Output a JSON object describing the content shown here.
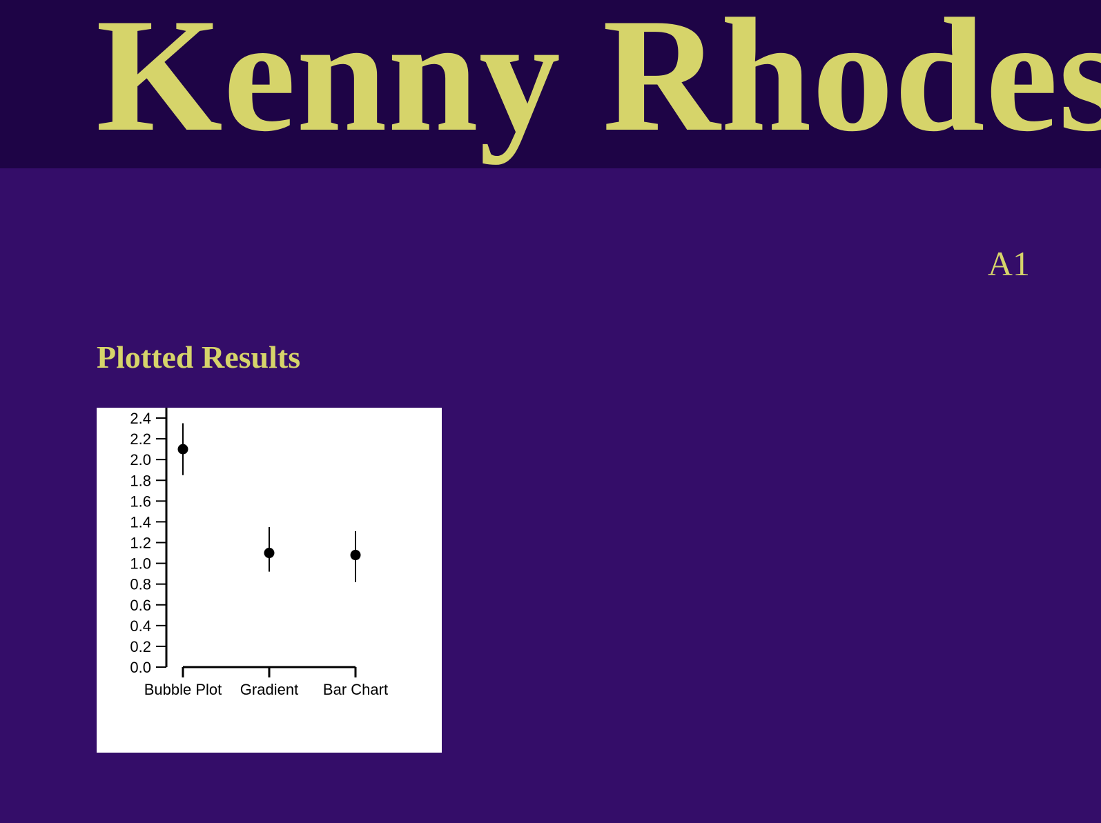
{
  "header": {
    "title": "Kenny Rhodes"
  },
  "page_label": "A1",
  "section": {
    "title": "Plotted Results"
  },
  "colors": {
    "header_bg": "#1e0446",
    "page_bg": "#340d69",
    "accent_text": "#d6d46a",
    "chart_bg": "#ffffff",
    "mark": "#000000"
  },
  "chart_data": {
    "type": "scatter",
    "categories": [
      "Bubble Plot",
      "Gradient",
      "Bar Chart"
    ],
    "values": [
      2.1,
      1.1,
      1.08
    ],
    "error_low": [
      1.85,
      0.92,
      0.82
    ],
    "error_high": [
      2.35,
      1.35,
      1.31
    ],
    "ylim": [
      0,
      2.4
    ],
    "yticks": [
      "0.0",
      "0.2",
      "0.4",
      "0.6",
      "0.8",
      "1.0",
      "1.2",
      "1.4",
      "1.6",
      "1.8",
      "2.0",
      "2.2",
      "2.4"
    ],
    "title": "",
    "xlabel": "",
    "ylabel": "",
    "grid": false,
    "legend": "none"
  }
}
